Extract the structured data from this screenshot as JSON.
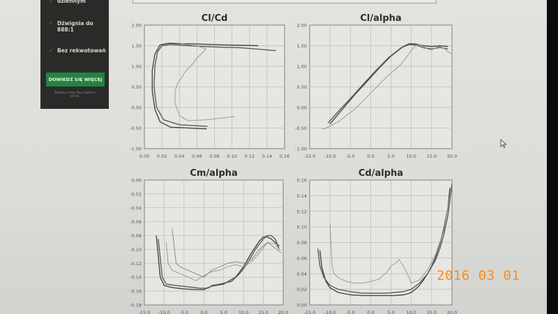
{
  "sidebar_ad": {
    "items": [
      {
        "check": "✓",
        "label": "dziennym"
      },
      {
        "check": "✓",
        "label": "Dźwignia do 888:1"
      },
      {
        "check": "✓",
        "label": "Bez rekwotowań"
      }
    ],
    "button_label": "DOWIEDZ SIĘ WIĘCEJ",
    "fine_print": "Trading is risky. Your capital is at risk.",
    "colors": {
      "panel": "#2a2b28",
      "button": "#23843e"
    }
  },
  "date_stamp": "2016 03 01",
  "chart_data": [
    {
      "type": "line",
      "title": "Cl/Cd",
      "xlabel": "",
      "ylabel": "",
      "xlim": [
        0.0,
        0.16
      ],
      "ylim": [
        -1.0,
        2.0
      ],
      "xticks": [
        "0.00",
        "0.02",
        "0.04",
        "0.06",
        "0.08",
        "0.10",
        "0.12",
        "0.14",
        "0.16"
      ],
      "yticks": [
        "2.00",
        "1.50",
        "1.00",
        "0.50",
        "0.00",
        "-0.50",
        "-1.00"
      ],
      "grid": true,
      "series": [
        {
          "x": [
            0.071,
            0.03,
            0.018,
            0.012,
            0.009,
            0.009,
            0.012,
            0.018,
            0.028,
            0.04,
            0.06,
            0.09,
            0.13
          ],
          "y": [
            -0.52,
            -0.48,
            -0.35,
            -0.05,
            0.4,
            0.9,
            1.3,
            1.52,
            1.56,
            1.55,
            1.54,
            1.52,
            1.5
          ]
        },
        {
          "x": [
            0.072,
            0.04,
            0.022,
            0.014,
            0.011,
            0.012,
            0.015,
            0.02,
            0.03,
            0.05,
            0.08,
            0.11,
            0.15
          ],
          "y": [
            -0.46,
            -0.42,
            -0.3,
            0.0,
            0.5,
            1.0,
            1.35,
            1.5,
            1.53,
            1.5,
            1.47,
            1.45,
            1.38
          ]
        },
        {
          "x": [
            0.103,
            0.07,
            0.05,
            0.04,
            0.035,
            0.035,
            0.038,
            0.042,
            0.046,
            0.05,
            0.055,
            0.06,
            0.065,
            0.07,
            0.06,
            0.05,
            0.042
          ],
          "y": [
            -0.22,
            -0.3,
            -0.32,
            -0.2,
            0.1,
            0.4,
            0.6,
            0.7,
            0.85,
            0.95,
            1.05,
            1.2,
            1.3,
            1.42,
            1.5,
            1.52,
            1.55
          ]
        }
      ]
    },
    {
      "type": "line",
      "title": "Cl/alpha",
      "xlabel": "",
      "ylabel": "",
      "xlim": [
        -15,
        20
      ],
      "ylim": [
        -1.0,
        2.0
      ],
      "xticks": [
        "-15.0",
        "-10.0",
        "-5.0",
        "0.0",
        "5.0",
        "10.0",
        "15.0",
        "20.0"
      ],
      "yticks": [
        "2.00",
        "1.50",
        "1.00",
        "0.50",
        "0.00",
        "-0.50",
        "-1.00"
      ],
      "grid": true,
      "series": [
        {
          "x": [
            -10,
            -7,
            -4,
            -1,
            2,
            5,
            8,
            9.5,
            11,
            13,
            15,
            17,
            19
          ],
          "y": [
            -0.4,
            -0.05,
            0.3,
            0.62,
            0.95,
            1.25,
            1.48,
            1.55,
            1.54,
            1.5,
            1.48,
            1.5,
            1.48
          ]
        },
        {
          "x": [
            -10.5,
            -7.5,
            -4.5,
            -1.5,
            1.5,
            4.5,
            7.5,
            9.5,
            11,
            13,
            15,
            17,
            19
          ],
          "y": [
            -0.38,
            -0.05,
            0.27,
            0.6,
            0.92,
            1.22,
            1.45,
            1.53,
            1.52,
            1.45,
            1.42,
            1.46,
            1.42
          ]
        },
        {
          "x": [
            -12,
            -11,
            -10,
            -9,
            -8,
            -6,
            -4,
            -2,
            0,
            2,
            4,
            6,
            7,
            8,
            9,
            10,
            11,
            12,
            13,
            14,
            15,
            16,
            17,
            18,
            19,
            20
          ],
          "y": [
            -0.52,
            -0.5,
            -0.45,
            -0.4,
            -0.35,
            -0.2,
            -0.05,
            0.15,
            0.35,
            0.55,
            0.75,
            0.92,
            1.0,
            1.12,
            1.25,
            1.38,
            1.5,
            1.52,
            1.48,
            1.42,
            1.4,
            1.45,
            1.48,
            1.44,
            1.35,
            1.3
          ]
        }
      ]
    },
    {
      "type": "line",
      "title": "Cm/alpha",
      "xlabel": "",
      "ylabel": "",
      "xlim": [
        -15,
        20
      ],
      "ylim": [
        -0.18,
        0.0
      ],
      "xticks": [
        "-15.0",
        "-10.0",
        "-5.0",
        "0.0",
        "5.0",
        "10.0",
        "15.0",
        "20.0"
      ],
      "yticks": [
        "0.00",
        "-0.02",
        "-0.04",
        "-0.06",
        "-0.08",
        "-0.10",
        "-0.12",
        "-0.14",
        "-0.16",
        "-0.18"
      ],
      "grid": true,
      "series": [
        {
          "x": [
            -12,
            -11,
            -10,
            -8,
            -5,
            -2,
            0,
            1,
            2,
            5,
            8,
            10,
            12,
            14,
            15,
            16,
            17,
            18,
            19
          ],
          "y": [
            -0.08,
            -0.14,
            -0.152,
            -0.155,
            -0.157,
            -0.158,
            -0.158,
            -0.155,
            -0.153,
            -0.15,
            -0.14,
            -0.125,
            -0.105,
            -0.088,
            -0.082,
            -0.082,
            -0.085,
            -0.09,
            -0.095
          ]
        },
        {
          "x": [
            -11.5,
            -10.5,
            -9.5,
            -7,
            -4,
            -1,
            1,
            2,
            4,
            7,
            9,
            11,
            13,
            15,
            16,
            17,
            18,
            19
          ],
          "y": [
            -0.085,
            -0.14,
            -0.15,
            -0.152,
            -0.154,
            -0.156,
            -0.156,
            -0.152,
            -0.15,
            -0.146,
            -0.135,
            -0.12,
            -0.1,
            -0.085,
            -0.08,
            -0.08,
            -0.085,
            -0.1
          ]
        },
        {
          "x": [
            -9.5,
            -9,
            -8,
            -6,
            -4,
            -2,
            0,
            2,
            4,
            6,
            8,
            10,
            12,
            14,
            16,
            18,
            19
          ],
          "y": [
            -0.09,
            -0.12,
            -0.13,
            -0.135,
            -0.14,
            -0.145,
            -0.138,
            -0.132,
            -0.13,
            -0.125,
            -0.122,
            -0.125,
            -0.118,
            -0.105,
            -0.09,
            -0.092,
            -0.1
          ]
        },
        {
          "x": [
            -8,
            -7,
            -6,
            -4,
            -2,
            0,
            2,
            4,
            6,
            8,
            10,
            12,
            14,
            16,
            18,
            19.5
          ],
          "y": [
            -0.07,
            -0.12,
            -0.125,
            -0.13,
            -0.135,
            -0.14,
            -0.13,
            -0.125,
            -0.12,
            -0.118,
            -0.12,
            -0.115,
            -0.1,
            -0.09,
            -0.098,
            -0.105
          ]
        }
      ]
    },
    {
      "type": "line",
      "title": "Cd/alpha",
      "xlabel": "",
      "ylabel": "",
      "xlim": [
        -15,
        20
      ],
      "ylim": [
        0.0,
        0.16
      ],
      "xticks": [
        "-15.0",
        "-10.0",
        "-5.0",
        "0.0",
        "5.0",
        "10.0",
        "15.0",
        "20.0"
      ],
      "yticks": [
        "0.16",
        "0.14",
        "0.12",
        "0.10",
        "0.08",
        "0.06",
        "0.04",
        "0.02",
        "0.00"
      ],
      "grid": true,
      "series": [
        {
          "x": [
            -12.5,
            -12,
            -11,
            -10,
            -8,
            -5,
            -2,
            0,
            2,
            4,
            6,
            8,
            9,
            10,
            11,
            12,
            13,
            14,
            15,
            16,
            17,
            18,
            19,
            19.5
          ],
          "y": [
            0.07,
            0.048,
            0.03,
            0.022,
            0.016,
            0.013,
            0.012,
            0.012,
            0.012,
            0.012,
            0.012,
            0.013,
            0.014,
            0.016,
            0.02,
            0.025,
            0.032,
            0.04,
            0.05,
            0.062,
            0.078,
            0.098,
            0.125,
            0.15
          ]
        },
        {
          "x": [
            -13,
            -12.5,
            -11.5,
            -10,
            -8,
            -5,
            -2,
            0,
            2,
            4,
            6,
            8,
            10,
            12,
            14,
            16,
            17,
            18,
            19,
            20
          ],
          "y": [
            0.072,
            0.05,
            0.035,
            0.025,
            0.02,
            0.017,
            0.015,
            0.015,
            0.015,
            0.015,
            0.016,
            0.017,
            0.02,
            0.028,
            0.04,
            0.058,
            0.072,
            0.09,
            0.115,
            0.155
          ]
        },
        {
          "x": [
            -10,
            -9.5,
            -9,
            -8,
            -6,
            -4,
            -2,
            0,
            2,
            4,
            5,
            6,
            7,
            8,
            9,
            10,
            12,
            14,
            16,
            18,
            19.5
          ],
          "y": [
            0.105,
            0.05,
            0.04,
            0.035,
            0.03,
            0.028,
            0.028,
            0.03,
            0.033,
            0.042,
            0.05,
            0.053,
            0.058,
            0.05,
            0.04,
            0.028,
            0.032,
            0.045,
            0.065,
            0.095,
            0.14
          ]
        }
      ]
    }
  ]
}
